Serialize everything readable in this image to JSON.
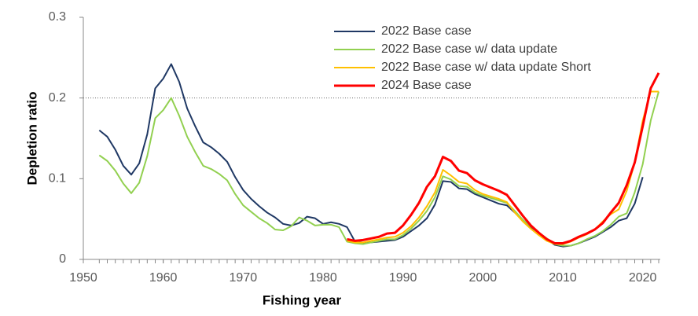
{
  "chart_data": {
    "type": "line",
    "x_label": "Fishing year",
    "y_label": "Depletion ratio",
    "x": [
      1952,
      1953,
      1954,
      1955,
      1956,
      1957,
      1958,
      1959,
      1960,
      1961,
      1962,
      1963,
      1964,
      1965,
      1966,
      1967,
      1968,
      1969,
      1970,
      1971,
      1972,
      1973,
      1974,
      1975,
      1976,
      1977,
      1978,
      1979,
      1980,
      1981,
      1982,
      1983,
      1984,
      1985,
      1986,
      1987,
      1988,
      1989,
      1990,
      1991,
      1992,
      1993,
      1994,
      1995,
      1996,
      1997,
      1998,
      1999,
      2000,
      2001,
      2002,
      2003,
      2004,
      2005,
      2006,
      2007,
      2008,
      2009,
      2010,
      2011,
      2012,
      2013,
      2014,
      2015,
      2016,
      2017,
      2018,
      2019,
      2020,
      2021,
      2022
    ],
    "series": [
      {
        "name": "2022 Base case",
        "color": "#1f3864",
        "width": 2,
        "values": [
          0.16,
          0.152,
          0.136,
          0.116,
          0.105,
          0.119,
          0.155,
          0.212,
          0.224,
          0.242,
          0.22,
          0.187,
          0.165,
          0.145,
          0.139,
          0.131,
          0.121,
          0.102,
          0.086,
          0.075,
          0.066,
          0.058,
          0.052,
          0.044,
          0.042,
          0.045,
          0.053,
          0.051,
          0.044,
          0.046,
          0.044,
          0.04,
          0.022,
          0.021,
          0.021,
          0.022,
          0.023,
          0.024,
          0.028,
          0.035,
          0.042,
          0.051,
          0.068,
          0.097,
          0.096,
          0.088,
          0.087,
          0.081,
          0.077,
          0.073,
          0.069,
          0.067,
          0.058,
          0.048,
          0.04,
          0.033,
          0.025,
          0.018,
          0.016,
          0.017,
          0.02,
          0.024,
          0.028,
          0.034,
          0.04,
          0.048,
          0.051,
          0.069,
          0.102,
          null,
          null
        ]
      },
      {
        "name": "2022 Base case w/ data update",
        "color": "#92d050",
        "width": 2,
        "values": [
          0.129,
          0.122,
          0.11,
          0.094,
          0.082,
          0.095,
          0.128,
          0.175,
          0.185,
          0.2,
          0.178,
          0.152,
          0.133,
          0.116,
          0.112,
          0.106,
          0.098,
          0.081,
          0.067,
          0.059,
          0.051,
          0.045,
          0.037,
          0.036,
          0.041,
          0.052,
          0.048,
          0.042,
          0.043,
          0.043,
          0.04,
          0.022,
          0.02,
          0.019,
          0.021,
          0.023,
          0.025,
          0.025,
          0.03,
          0.038,
          0.048,
          0.06,
          0.077,
          0.103,
          0.099,
          0.091,
          0.09,
          0.083,
          0.079,
          0.076,
          0.073,
          0.07,
          0.06,
          0.049,
          0.041,
          0.033,
          0.026,
          0.019,
          0.017,
          0.017,
          0.02,
          0.025,
          0.029,
          0.035,
          0.043,
          0.053,
          0.057,
          0.083,
          0.118,
          0.172,
          0.208
        ]
      },
      {
        "name": "2022 Base case w/ data update Short",
        "color": "#ffc000",
        "width": 2,
        "values": [
          null,
          null,
          null,
          null,
          null,
          null,
          null,
          null,
          null,
          null,
          null,
          null,
          null,
          null,
          null,
          null,
          null,
          null,
          null,
          null,
          null,
          null,
          null,
          null,
          null,
          null,
          null,
          null,
          null,
          null,
          null,
          0.023,
          0.021,
          0.021,
          0.023,
          0.025,
          0.027,
          0.028,
          0.033,
          0.041,
          0.052,
          0.066,
          0.083,
          0.111,
          0.104,
          0.096,
          0.094,
          0.086,
          0.081,
          0.078,
          0.075,
          0.071,
          0.058,
          0.047,
          0.038,
          0.03,
          0.023,
          0.019,
          0.019,
          0.022,
          0.027,
          0.031,
          0.037,
          0.047,
          0.056,
          0.062,
          0.085,
          0.12,
          0.172,
          0.208,
          0.208
        ]
      },
      {
        "name": "2024 Base case",
        "color": "#ff0000",
        "width": 3,
        "values": [
          null,
          null,
          null,
          null,
          null,
          null,
          null,
          null,
          null,
          null,
          null,
          null,
          null,
          null,
          null,
          null,
          null,
          null,
          null,
          null,
          null,
          null,
          null,
          null,
          null,
          null,
          null,
          null,
          null,
          null,
          null,
          0.025,
          0.023,
          0.024,
          0.026,
          0.028,
          0.032,
          0.033,
          0.042,
          0.055,
          0.07,
          0.09,
          0.103,
          0.127,
          0.122,
          0.11,
          0.107,
          0.098,
          0.093,
          0.089,
          0.085,
          0.08,
          0.067,
          0.054,
          0.042,
          0.033,
          0.025,
          0.02,
          0.02,
          0.023,
          0.028,
          0.032,
          0.037,
          0.045,
          0.058,
          0.07,
          0.092,
          0.12,
          0.165,
          0.212,
          0.231
        ]
      }
    ],
    "xlim": [
      1950,
      2022
    ],
    "xticks": [
      1950,
      1960,
      1970,
      1980,
      1990,
      2000,
      2010,
      2020
    ],
    "ylim": [
      0,
      0.3
    ],
    "yticks": [
      0,
      0.1,
      0.2,
      0.3
    ],
    "reference_line": 0.2,
    "grid": false,
    "legend": "upper center"
  }
}
